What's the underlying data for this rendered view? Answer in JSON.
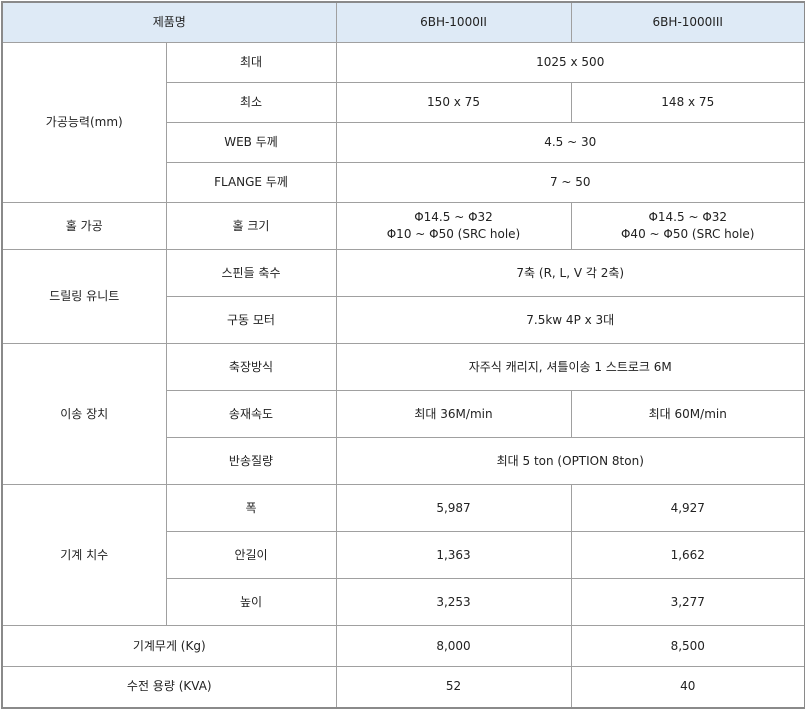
{
  "header": {
    "product_name": "제품명",
    "models": [
      "6BH-1000II",
      "6BH-1000III"
    ]
  },
  "capacity": {
    "label": "가공능력(mm)",
    "rows": [
      {
        "label": "최대",
        "value": "1025 x 500"
      },
      {
        "label": "최소",
        "values": [
          "150 x 75",
          "148 x 75"
        ]
      },
      {
        "label": "WEB 두께",
        "value": "4.5 ~ 30"
      },
      {
        "label": "FLANGE 두께",
        "value": "7 ~ 50"
      }
    ]
  },
  "hole": {
    "label": "홀 가공",
    "sub": "홀 크기",
    "values": [
      [
        "Φ14.5 ~ Φ32",
        "Φ10 ~ Φ50 (SRC hole)"
      ],
      [
        "Φ14.5 ~ Φ32",
        "Φ40 ~ Φ50 (SRC hole)"
      ]
    ]
  },
  "drill": {
    "label": "드릴링 유니트",
    "rows": [
      {
        "label": "스핀들 축수",
        "value": "7축 (R, L, V 각 2축)"
      },
      {
        "label": "구동 모터",
        "value": "7.5kw 4P x 3대"
      }
    ]
  },
  "transfer": {
    "label": "이송 장치",
    "rows": [
      {
        "label": "축장방식",
        "value": "자주식 캐리지, 셔틀이송 1 스트로크 6M"
      },
      {
        "label": "송재속도",
        "values": [
          "최대 36M/min",
          "최대 60M/min"
        ]
      },
      {
        "label": "반송질량",
        "value": "최대 5 ton (OPTION 8ton)"
      }
    ]
  },
  "dimensions": {
    "label": "기계 치수",
    "rows": [
      {
        "label": "폭",
        "values": [
          "5,987",
          "4,927"
        ]
      },
      {
        "label": "안길이",
        "values": [
          "1,363",
          "1,662"
        ]
      },
      {
        "label": "높이",
        "values": [
          "3,253",
          "3,277"
        ]
      }
    ]
  },
  "weight": {
    "label": "기계무게 (Kg)",
    "values": [
      "8,000",
      "8,500"
    ]
  },
  "power": {
    "label": "수전 용량 (KVA)",
    "values": [
      "52",
      "40"
    ]
  }
}
